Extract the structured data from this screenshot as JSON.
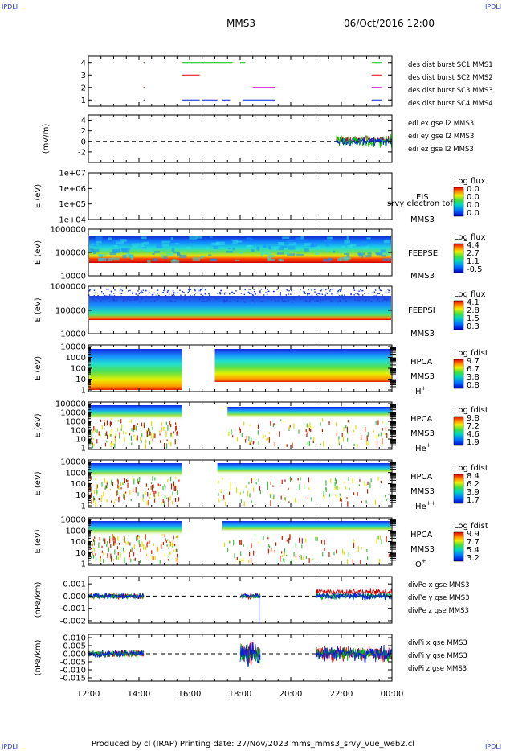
{
  "header": {
    "corner_tl": "IPDLI",
    "corner_tr": "IPDLI",
    "corner_bl": "IPDLI",
    "corner_br": "IPDLI",
    "spacecraft": "MMS3",
    "datetime": "06/Oct/2016 12:00"
  },
  "footer": {
    "text": "Produced by cl (IRAP)   Printing date: 27/Nov/2023   mms_mms3_srvy_vue_web2.cl"
  },
  "colors": {
    "red": "#e00000",
    "green": "#00c000",
    "blue": "#0020e0",
    "magenta": "#d000d0"
  },
  "chart_data": [
    {
      "type": "line",
      "panel": "burst",
      "ylim": [
        0.5,
        4.5
      ],
      "yticks": [
        "1",
        "2",
        "3",
        "4"
      ],
      "xticks": [
        "12:00",
        "14:00",
        "16:00",
        "18:00",
        "20:00",
        "22:00",
        "00:00"
      ],
      "legend": [
        "des dist burst SC1 MMS1",
        "des dist burst SC2 MMS2",
        "des dist burst SC3 MMS3",
        "des dist burst SC4 MMS4"
      ],
      "segments": [
        {
          "level": 4,
          "color": "green",
          "ranges": [
            [
              15.7,
              16.8
            ],
            [
              16.8,
              17.5
            ],
            [
              17.5,
              17.7
            ],
            [
              18.0,
              18.2
            ],
            [
              23.2,
              23.6
            ],
            [
              23.9,
              24.0
            ]
          ]
        },
        {
          "level": 3,
          "color": "red",
          "ranges": [
            [
              15.7,
              16.4
            ],
            [
              23.2,
              23.6
            ],
            [
              23.9,
              24.0
            ]
          ]
        },
        {
          "level": 2,
          "color": "magenta",
          "ranges": [
            [
              18.5,
              19.4
            ],
            [
              23.2,
              23.6
            ],
            [
              23.9,
              24.0
            ]
          ]
        },
        {
          "level": 1,
          "color": "blue",
          "ranges": [
            [
              15.7,
              16.4
            ],
            [
              16.5,
              17.1
            ],
            [
              17.3,
              17.6
            ],
            [
              18.1,
              19.4
            ],
            [
              23.2,
              23.6
            ],
            [
              23.9,
              24.0
            ]
          ]
        }
      ]
    },
    {
      "type": "line",
      "panel": "edi",
      "ylabel": "(mV/m)",
      "ylim": [
        -4,
        5
      ],
      "yticks": [
        "-2",
        "0",
        "2",
        "4"
      ],
      "legend": [
        "edi ex gse l2 MMS3",
        "edi ey gse l2 MMS3",
        "edi ez gse l2 MMS3"
      ],
      "active_range": [
        21.8,
        24.0
      ]
    },
    {
      "type": "heatmap",
      "panel": "eis",
      "ylabel": "E (eV)",
      "yticks": [
        "1e+04",
        "1e+05",
        "1e+06",
        "1e+07"
      ],
      "labels": [
        "EIS",
        "srvy electron tof",
        "MMS3"
      ],
      "colorbar_title": "Log flux",
      "colorbar_ticks": [
        "0.0",
        "0.0",
        "0.0",
        "0.0"
      ]
    },
    {
      "type": "heatmap",
      "panel": "feeps_e",
      "ylabel": "E (eV)",
      "yticks": [
        "10000",
        "100000",
        "1000000"
      ],
      "labels": [
        "FEEPSE",
        "MMS3"
      ],
      "colorbar_title": "Log flux",
      "colorbar_ticks": [
        "4.4",
        "2.7",
        "1.1",
        "-0.5"
      ]
    },
    {
      "type": "heatmap",
      "panel": "feeps_i",
      "ylabel": "E (eV)",
      "yticks": [
        "10000",
        "100000",
        "1000000"
      ],
      "labels": [
        "FEEPSI",
        "MMS3"
      ],
      "colorbar_title": "Log flux",
      "colorbar_ticks": [
        "4.1",
        "2.8",
        "1.5",
        "0.3"
      ]
    },
    {
      "type": "heatmap",
      "panel": "hpca_h",
      "ylabel": "E (eV)",
      "yticks": [
        "1",
        "10",
        "100",
        "1000",
        "10000"
      ],
      "labels": [
        "HPCA",
        "MMS3",
        "H+"
      ],
      "colorbar_title": "Log fdist",
      "colorbar_ticks": [
        "9.7",
        "6.7",
        "3.8",
        "0.8"
      ]
    },
    {
      "type": "heatmap",
      "panel": "hpca_he",
      "ylabel": "E (eV)",
      "yticks": [
        "1",
        "10",
        "100",
        "1000",
        "10000",
        "100000"
      ],
      "labels": [
        "HPCA",
        "MMS3",
        "He+"
      ],
      "colorbar_title": "Log fdist",
      "colorbar_ticks": [
        "9.8",
        "7.2",
        "4.6",
        "1.9"
      ]
    },
    {
      "type": "heatmap",
      "panel": "hpca_hepp",
      "ylabel": "E (eV)",
      "yticks": [
        "1",
        "10",
        "100",
        "1000",
        "10000"
      ],
      "labels": [
        "HPCA",
        "MMS3",
        "He++"
      ],
      "colorbar_title": "Log fdist",
      "colorbar_ticks": [
        "8.4",
        "6.2",
        "3.9",
        "1.7"
      ]
    },
    {
      "type": "heatmap",
      "panel": "hpca_o",
      "ylabel": "E (eV)",
      "yticks": [
        "1",
        "10",
        "100",
        "1000",
        "10000"
      ],
      "labels": [
        "HPCA",
        "MMS3",
        "O+"
      ],
      "colorbar_title": "Log fdist",
      "colorbar_ticks": [
        "9.9",
        "7.7",
        "5.4",
        "3.2"
      ]
    },
    {
      "type": "line",
      "panel": "divpe",
      "ylabel": "(nPa/km)",
      "ylim": [
        -0.0022,
        0.0016
      ],
      "yticks": [
        "-0.002",
        "-0.001",
        "0.000",
        "0.001"
      ],
      "legend": [
        "divPe x gse MMS3",
        "divPe y gse MMS3",
        "divPe z gse MMS3"
      ]
    },
    {
      "type": "line",
      "panel": "divpi",
      "ylabel": "(nPa/km)",
      "ylim": [
        -0.017,
        0.012
      ],
      "yticks": [
        "-0.015",
        "-0.010",
        "-0.005",
        "0.000",
        "0.005",
        "0.010"
      ],
      "legend": [
        "divPi x gse MMS3",
        "divPi y gse MMS3",
        "divPi z gse MMS3"
      ]
    }
  ]
}
